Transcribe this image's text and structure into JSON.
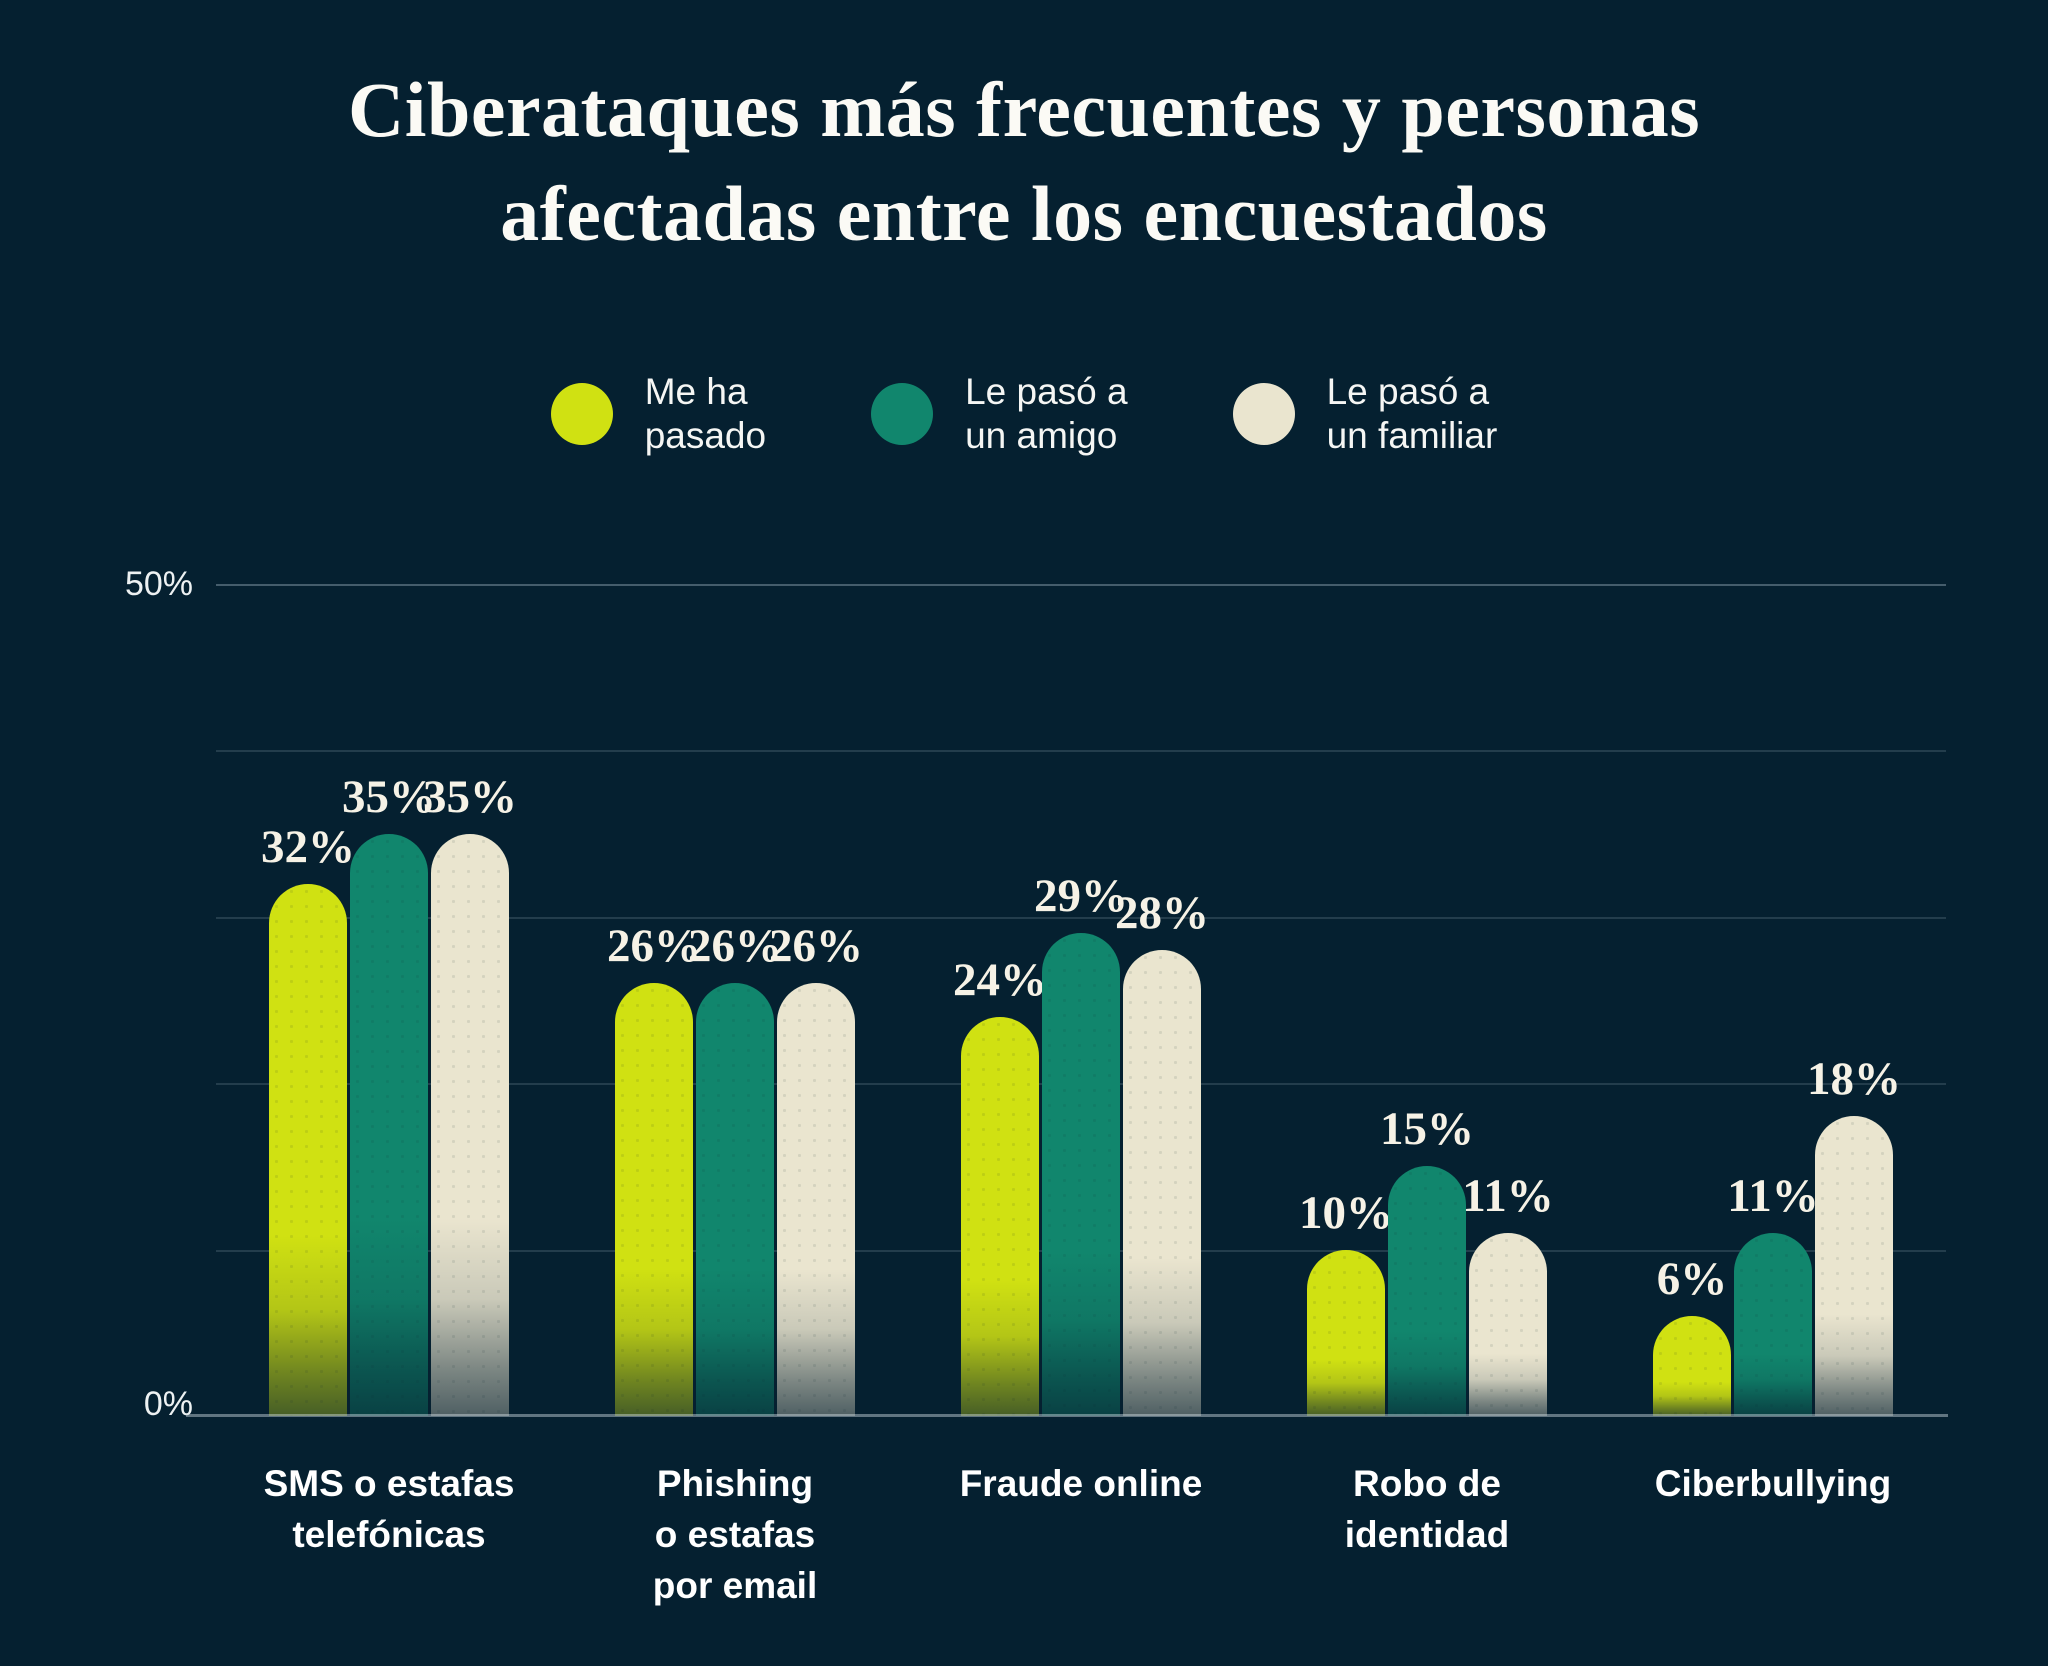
{
  "title": "Ciberataques más frecuentes y personas\nafectadas entre los encuestados",
  "colors": {
    "background": "#052030",
    "title_text": "#FBFAF5",
    "axis_line": "#AEC2CC"
  },
  "legend": [
    {
      "label": "Me ha\npasado"
    },
    {
      "label": "Le pasó a\nun amigo"
    },
    {
      "label": "Le pasó a\nun familiar"
    }
  ],
  "axis": {
    "y_max_label": "50%",
    "y_min_label": "0%"
  },
  "chart_data": {
    "type": "bar",
    "title": "Ciberataques más frecuentes y personas afectadas entre los encuestados",
    "categories": [
      "SMS o estafas\ntelefónicas",
      "Phishing\no estafas\npor email",
      "Fraude online",
      "Robo de\nidentidad",
      "Ciberbullying"
    ],
    "series": [
      {
        "name": "Me ha pasado",
        "color": "#D0E112",
        "values": [
          32,
          26,
          24,
          10,
          6
        ]
      },
      {
        "name": "Le pasó a un amigo",
        "color": "#11866D",
        "values": [
          35,
          26,
          29,
          15,
          11
        ]
      },
      {
        "name": "Le pasó a un familiar",
        "color": "#EAE5CF",
        "values": [
          35,
          26,
          28,
          11,
          18
        ]
      }
    ],
    "value_suffix": "%",
    "ylim": [
      0,
      50
    ],
    "gridline_step": 10,
    "grid": true,
    "legend_position": "top",
    "xlabel": "",
    "ylabel": ""
  }
}
